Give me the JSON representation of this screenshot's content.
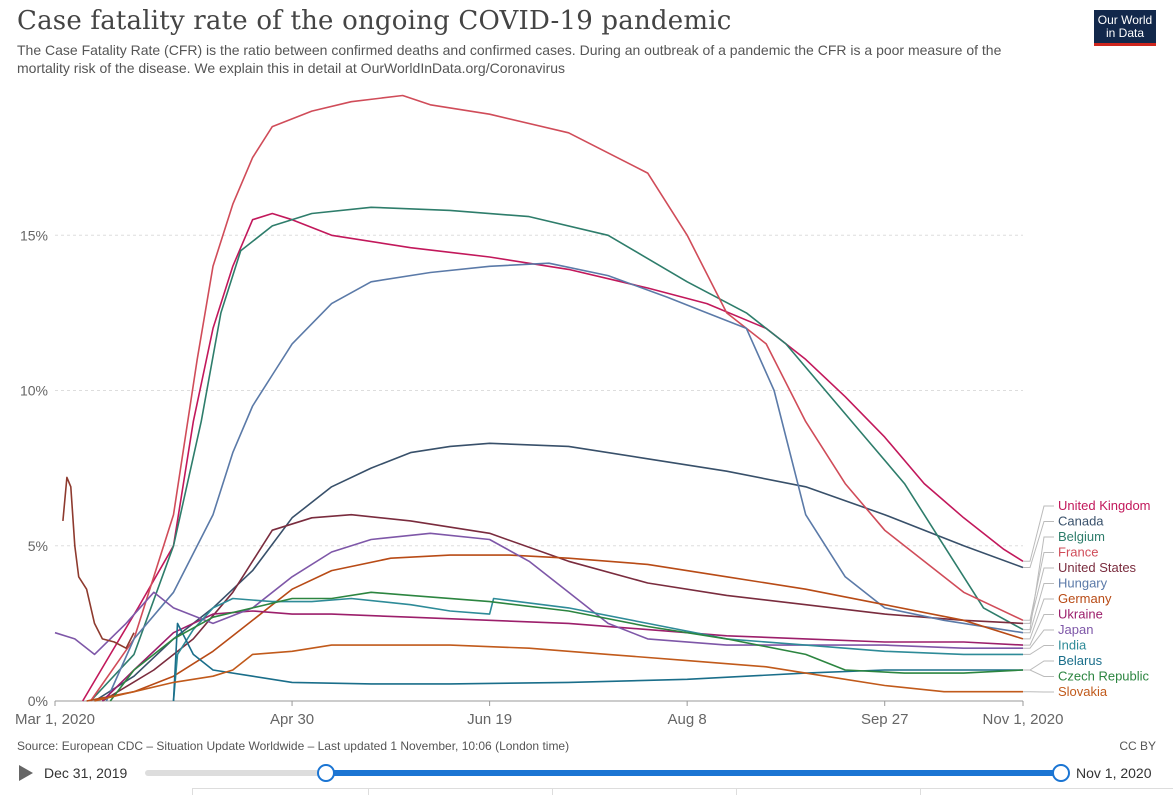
{
  "title": "Case fatality rate of the ongoing COVID-19 pandemic",
  "subtitle": "The Case Fatality Rate (CFR) is the ratio between confirmed deaths and confirmed cases. During an outbreak of a pandemic the CFR is a poor measure of the mortality risk of the disease. We explain this in detail at OurWorldInData.org/Coronavirus",
  "logo": {
    "line1": "Our World",
    "line2": "in Data"
  },
  "source": "Source: European CDC – Situation Update Worldwide – Last updated 1 November, 10:06 (London time)",
  "license": "CC BY",
  "timeline": {
    "start_label": "Dec 31, 2019",
    "end_label": "Nov 1, 2020"
  },
  "colors": {
    "grid": "#dddddd",
    "axis": "#999999",
    "label_text": "#666666",
    "slider": "#1b75d3"
  },
  "chart_data": {
    "type": "line",
    "title": "Case fatality rate of the ongoing COVID-19 pandemic",
    "xlabel": "",
    "ylabel": "",
    "x_unit": "days since Mar 1, 2020",
    "xlim": [
      0,
      245
    ],
    "ylim": [
      0,
      20
    ],
    "yticks": [
      0,
      5,
      10,
      15
    ],
    "ytick_labels": [
      "0%",
      "5%",
      "10%",
      "15%"
    ],
    "xticks": [
      0,
      60,
      110,
      160,
      210,
      245
    ],
    "xtick_labels": [
      "Mar 1, 2020",
      "Apr 30",
      "Jun 19",
      "Aug 8",
      "Sep 27",
      "Nov 1, 2020"
    ],
    "grid": true,
    "legend": "end-of-line labels, right",
    "series": [
      {
        "name": "United Kingdom",
        "color": "#c2185b",
        "points": [
          [
            7,
            0
          ],
          [
            14,
            1.5
          ],
          [
            21,
            3
          ],
          [
            30,
            5
          ],
          [
            35,
            9
          ],
          [
            40,
            12
          ],
          [
            45,
            14
          ],
          [
            50,
            15.5
          ],
          [
            55,
            15.7
          ],
          [
            60,
            15.5
          ],
          [
            70,
            15
          ],
          [
            90,
            14.6
          ],
          [
            110,
            14.3
          ],
          [
            130,
            13.9
          ],
          [
            150,
            13.3
          ],
          [
            165,
            12.8
          ],
          [
            180,
            12
          ],
          [
            190,
            11
          ],
          [
            200,
            9.8
          ],
          [
            210,
            8.5
          ],
          [
            220,
            7
          ],
          [
            230,
            5.9
          ],
          [
            240,
            4.9
          ],
          [
            245,
            4.5
          ]
        ]
      },
      {
        "name": "Canada",
        "color": "#38506a",
        "points": [
          [
            10,
            0
          ],
          [
            20,
            0.8
          ],
          [
            30,
            2
          ],
          [
            40,
            3
          ],
          [
            50,
            4.2
          ],
          [
            60,
            5.9
          ],
          [
            70,
            6.9
          ],
          [
            80,
            7.5
          ],
          [
            90,
            8
          ],
          [
            100,
            8.2
          ],
          [
            110,
            8.3
          ],
          [
            130,
            8.2
          ],
          [
            150,
            7.8
          ],
          [
            170,
            7.4
          ],
          [
            190,
            6.9
          ],
          [
            210,
            6
          ],
          [
            230,
            5
          ],
          [
            245,
            4.3
          ]
        ]
      },
      {
        "name": "Belgium",
        "color": "#2e7d6b",
        "points": [
          [
            9,
            0
          ],
          [
            20,
            1.5
          ],
          [
            30,
            5
          ],
          [
            37,
            9
          ],
          [
            42,
            12.5
          ],
          [
            47,
            14.5
          ],
          [
            55,
            15.3
          ],
          [
            65,
            15.7
          ],
          [
            80,
            15.9
          ],
          [
            100,
            15.8
          ],
          [
            120,
            15.6
          ],
          [
            140,
            15
          ],
          [
            160,
            13.5
          ],
          [
            175,
            12.5
          ],
          [
            185,
            11.5
          ],
          [
            195,
            10
          ],
          [
            205,
            8.5
          ],
          [
            215,
            7
          ],
          [
            225,
            5
          ],
          [
            235,
            3
          ],
          [
            245,
            2.3
          ]
        ]
      },
      {
        "name": "France",
        "color": "#d04c59",
        "points": [
          [
            9,
            0
          ],
          [
            20,
            2
          ],
          [
            30,
            6
          ],
          [
            36,
            11
          ],
          [
            40,
            14
          ],
          [
            45,
            16
          ],
          [
            50,
            17.5
          ],
          [
            55,
            18.5
          ],
          [
            65,
            19
          ],
          [
            75,
            19.3
          ],
          [
            88,
            19.5
          ],
          [
            95,
            19.2
          ],
          [
            110,
            18.9
          ],
          [
            130,
            18.3
          ],
          [
            150,
            17
          ],
          [
            160,
            15
          ],
          [
            170,
            12.5
          ],
          [
            180,
            11.5
          ],
          [
            190,
            9
          ],
          [
            200,
            7
          ],
          [
            210,
            5.5
          ],
          [
            220,
            4.5
          ],
          [
            230,
            3.5
          ],
          [
            245,
            2.6
          ]
        ]
      },
      {
        "name": "United States",
        "color": "#7a2c3e",
        "points": [
          [
            12,
            0
          ],
          [
            25,
            1
          ],
          [
            35,
            2
          ],
          [
            45,
            3.5
          ],
          [
            55,
            5.5
          ],
          [
            65,
            5.9
          ],
          [
            75,
            6
          ],
          [
            90,
            5.8
          ],
          [
            110,
            5.4
          ],
          [
            130,
            4.5
          ],
          [
            150,
            3.8
          ],
          [
            170,
            3.4
          ],
          [
            190,
            3.1
          ],
          [
            210,
            2.8
          ],
          [
            230,
            2.6
          ],
          [
            245,
            2.5
          ]
        ]
      },
      {
        "name": "Hungary",
        "color": "#5b7aa8",
        "points": [
          [
            13,
            0
          ],
          [
            20,
            2
          ],
          [
            30,
            3.5
          ],
          [
            40,
            6
          ],
          [
            45,
            8
          ],
          [
            50,
            9.5
          ],
          [
            55,
            10.5
          ],
          [
            60,
            11.5
          ],
          [
            70,
            12.8
          ],
          [
            80,
            13.5
          ],
          [
            95,
            13.8
          ],
          [
            110,
            14
          ],
          [
            125,
            14.1
          ],
          [
            140,
            13.7
          ],
          [
            155,
            13
          ],
          [
            165,
            12.5
          ],
          [
            175,
            12
          ],
          [
            182,
            10
          ],
          [
            190,
            6
          ],
          [
            200,
            4
          ],
          [
            210,
            3
          ],
          [
            225,
            2.6
          ],
          [
            245,
            2.2
          ]
        ]
      },
      {
        "name": "Germany",
        "color": "#b84b16",
        "points": [
          [
            8,
            0
          ],
          [
            20,
            0.3
          ],
          [
            30,
            0.8
          ],
          [
            40,
            1.6
          ],
          [
            50,
            2.6
          ],
          [
            60,
            3.6
          ],
          [
            70,
            4.2
          ],
          [
            85,
            4.6
          ],
          [
            100,
            4.7
          ],
          [
            115,
            4.7
          ],
          [
            130,
            4.6
          ],
          [
            150,
            4.4
          ],
          [
            170,
            4
          ],
          [
            190,
            3.6
          ],
          [
            210,
            3.1
          ],
          [
            230,
            2.6
          ],
          [
            245,
            2
          ]
        ]
      },
      {
        "name": "Ukraine",
        "color": "#9c1f6b",
        "points": [
          [
            12,
            0
          ],
          [
            20,
            1
          ],
          [
            30,
            2.2
          ],
          [
            40,
            2.8
          ],
          [
            50,
            2.9
          ],
          [
            60,
            2.8
          ],
          [
            70,
            2.8
          ],
          [
            90,
            2.7
          ],
          [
            110,
            2.6
          ],
          [
            130,
            2.5
          ],
          [
            150,
            2.3
          ],
          [
            170,
            2.1
          ],
          [
            190,
            2
          ],
          [
            210,
            1.9
          ],
          [
            230,
            1.9
          ],
          [
            245,
            1.8
          ]
        ]
      },
      {
        "name": "Japan",
        "color": "#7e57a8",
        "points": [
          [
            0,
            2.2
          ],
          [
            5,
            2
          ],
          [
            10,
            1.5
          ],
          [
            18,
            2.5
          ],
          [
            25,
            3.5
          ],
          [
            30,
            3
          ],
          [
            40,
            2.5
          ],
          [
            50,
            3
          ],
          [
            60,
            4
          ],
          [
            70,
            4.8
          ],
          [
            80,
            5.2
          ],
          [
            95,
            5.4
          ],
          [
            110,
            5.2
          ],
          [
            120,
            4.5
          ],
          [
            130,
            3.5
          ],
          [
            140,
            2.5
          ],
          [
            150,
            2
          ],
          [
            170,
            1.8
          ],
          [
            190,
            1.8
          ],
          [
            210,
            1.8
          ],
          [
            230,
            1.7
          ],
          [
            245,
            1.7
          ]
        ]
      },
      {
        "name": "India",
        "color": "#2e8b98",
        "points": [
          [
            30,
            0
          ],
          [
            31,
            1.5
          ],
          [
            35,
            2.3
          ],
          [
            40,
            3
          ],
          [
            45,
            3.3
          ],
          [
            55,
            3.2
          ],
          [
            65,
            3.2
          ],
          [
            75,
            3.3
          ],
          [
            90,
            3.1
          ],
          [
            100,
            2.9
          ],
          [
            110,
            2.8
          ],
          [
            111,
            3.3
          ],
          [
            130,
            3
          ],
          [
            150,
            2.5
          ],
          [
            170,
            2
          ],
          [
            190,
            1.8
          ],
          [
            210,
            1.6
          ],
          [
            230,
            1.5
          ],
          [
            245,
            1.5
          ]
        ]
      },
      {
        "name": "Belarus",
        "color": "#1a6e8a",
        "points": [
          [
            30,
            0
          ],
          [
            31,
            2.5
          ],
          [
            35,
            1.5
          ],
          [
            40,
            1
          ],
          [
            50,
            0.8
          ],
          [
            60,
            0.6
          ],
          [
            80,
            0.55
          ],
          [
            100,
            0.55
          ],
          [
            130,
            0.6
          ],
          [
            160,
            0.7
          ],
          [
            190,
            0.9
          ],
          [
            210,
            1
          ],
          [
            230,
            1
          ],
          [
            245,
            1
          ]
        ]
      },
      {
        "name": "Czech Republic",
        "color": "#2c8540",
        "points": [
          [
            14,
            0
          ],
          [
            20,
            1
          ],
          [
            30,
            2
          ],
          [
            40,
            2.7
          ],
          [
            50,
            3
          ],
          [
            60,
            3.3
          ],
          [
            70,
            3.3
          ],
          [
            80,
            3.5
          ],
          [
            90,
            3.4
          ],
          [
            110,
            3.2
          ],
          [
            130,
            2.9
          ],
          [
            150,
            2.4
          ],
          [
            170,
            2
          ],
          [
            190,
            1.5
          ],
          [
            200,
            1
          ],
          [
            215,
            0.9
          ],
          [
            230,
            0.9
          ],
          [
            245,
            1
          ]
        ]
      },
      {
        "name": "Slovakia",
        "color": "#c15a1b",
        "points": [
          [
            10,
            0
          ],
          [
            20,
            0.3
          ],
          [
            30,
            0.6
          ],
          [
            40,
            0.8
          ],
          [
            45,
            1
          ],
          [
            50,
            1.5
          ],
          [
            60,
            1.6
          ],
          [
            70,
            1.8
          ],
          [
            80,
            1.8
          ],
          [
            100,
            1.8
          ],
          [
            120,
            1.7
          ],
          [
            140,
            1.5
          ],
          [
            160,
            1.3
          ],
          [
            180,
            1.1
          ],
          [
            195,
            0.8
          ],
          [
            210,
            0.5
          ],
          [
            225,
            0.3
          ],
          [
            245,
            0.3
          ]
        ]
      },
      {
        "name": "",
        "color": "#8e3a2e",
        "points": [
          [
            2,
            5.8
          ],
          [
            3,
            7.2
          ],
          [
            4,
            6.9
          ],
          [
            5,
            5
          ],
          [
            6,
            4
          ],
          [
            8,
            3.6
          ],
          [
            10,
            2.5
          ],
          [
            12,
            2
          ],
          [
            15,
            1.9
          ],
          [
            18,
            1.7
          ],
          [
            20,
            2.2
          ]
        ]
      }
    ]
  }
}
